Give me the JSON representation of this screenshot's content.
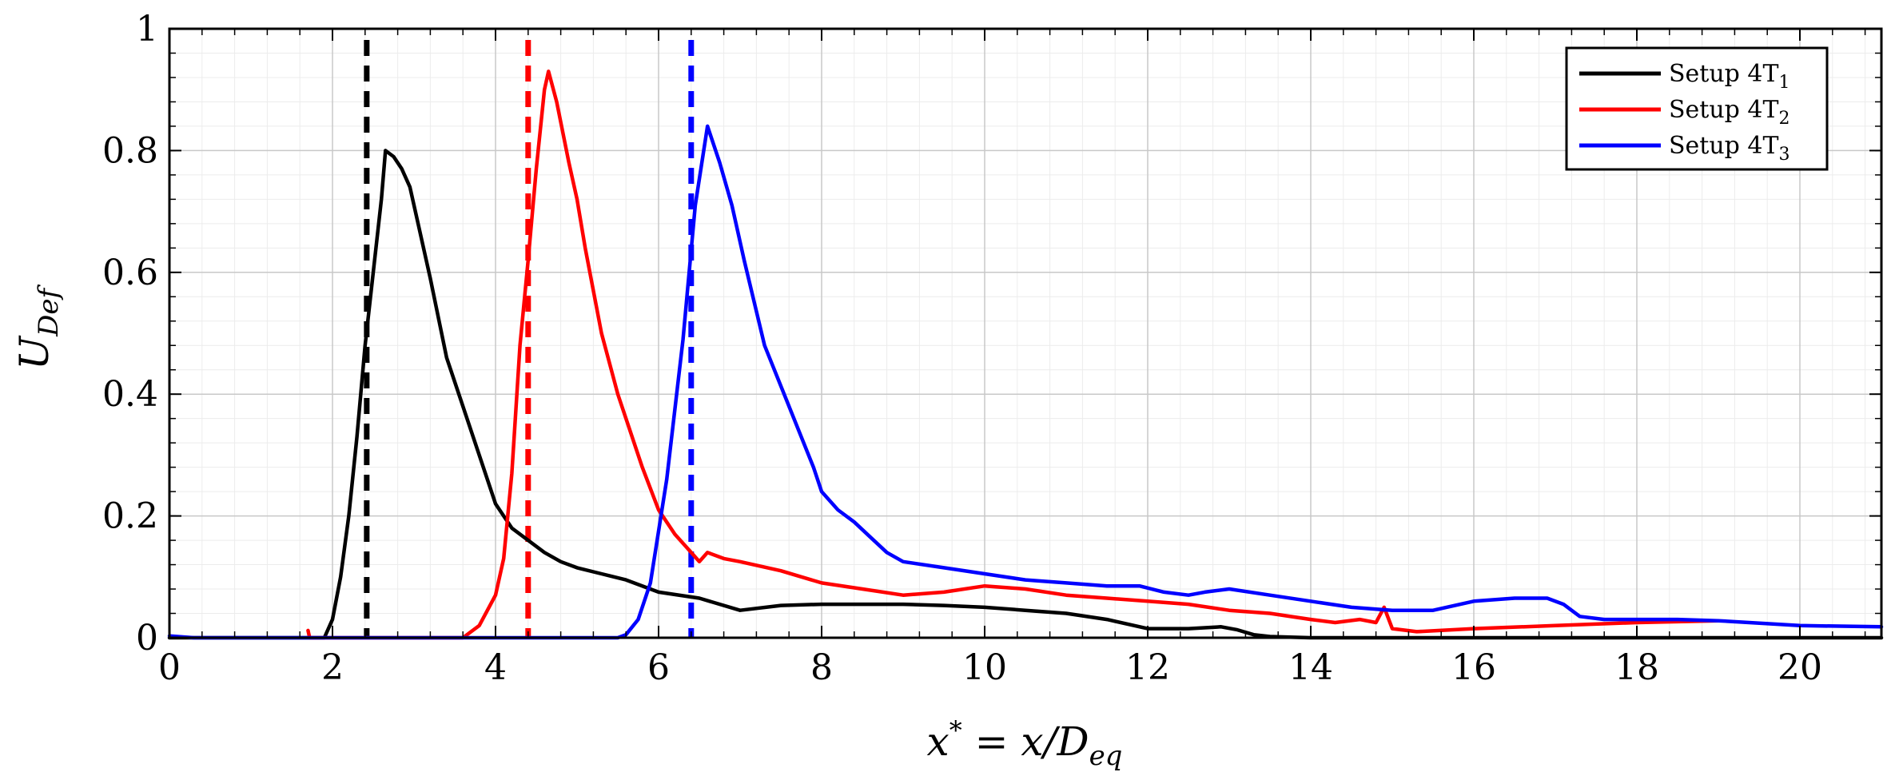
{
  "chart_data": {
    "type": "line",
    "xlabel_main": "x",
    "xlabel_sup": "*",
    "xlabel_rest": " = x/D",
    "xlabel_sub": "eq",
    "ylabel_main": "U",
    "ylabel_sub": "Def",
    "xlim": [
      0,
      21
    ],
    "ylim": [
      0,
      1
    ],
    "xticks": [
      "0",
      "2",
      "4",
      "6",
      "8",
      "10",
      "12",
      "14",
      "16",
      "18",
      "20"
    ],
    "yticks": [
      "0",
      "0.2",
      "0.4",
      "0.6",
      "0.8",
      "1"
    ],
    "grid": true,
    "legend_position": "top-right",
    "series": [
      {
        "name": "Setup 4T",
        "name_sub": "1",
        "color": "#000000",
        "peak_marker_x": 2.42,
        "x": [
          0,
          1.9,
          2.0,
          2.1,
          2.2,
          2.3,
          2.4,
          2.5,
          2.6,
          2.65,
          2.75,
          2.85,
          2.95,
          3.05,
          3.2,
          3.4,
          3.6,
          3.8,
          4.0,
          4.1,
          4.2,
          4.4,
          4.6,
          4.8,
          5.0,
          5.3,
          5.6,
          6.0,
          6.5,
          7.0,
          7.5,
          8.0,
          8.5,
          9.0,
          9.5,
          10.0,
          10.5,
          11.0,
          11.5,
          12.0,
          12.5,
          12.9,
          13.1,
          13.3,
          13.5,
          14.0,
          21
        ],
        "y": [
          0,
          0,
          0.03,
          0.1,
          0.2,
          0.33,
          0.48,
          0.6,
          0.72,
          0.8,
          0.79,
          0.77,
          0.74,
          0.68,
          0.59,
          0.46,
          0.38,
          0.3,
          0.22,
          0.2,
          0.18,
          0.16,
          0.14,
          0.125,
          0.115,
          0.105,
          0.095,
          0.075,
          0.065,
          0.045,
          0.053,
          0.055,
          0.055,
          0.055,
          0.053,
          0.05,
          0.045,
          0.04,
          0.03,
          0.015,
          0.015,
          0.018,
          0.013,
          0.005,
          0.002,
          0,
          0
        ]
      },
      {
        "name": "Setup 4T",
        "name_sub": "2",
        "color": "#ff0000",
        "peak_marker_x": 4.4,
        "x": [
          1.7,
          1.72,
          1.75,
          3.6,
          3.8,
          4.0,
          4.1,
          4.2,
          4.3,
          4.4,
          4.5,
          4.6,
          4.65,
          4.75,
          4.9,
          5.0,
          5.1,
          5.3,
          5.5,
          5.8,
          6.0,
          6.2,
          6.4,
          6.5,
          6.6,
          6.8,
          7.0,
          7.5,
          8.0,
          8.5,
          9.0,
          9.5,
          10.0,
          10.5,
          11.0,
          11.5,
          12.0,
          12.5,
          13.0,
          13.5,
          14.0,
          14.3,
          14.6,
          14.8,
          14.9,
          15.0,
          15.3,
          16.0,
          17.0,
          18.0,
          19.0
        ],
        "y": [
          0.012,
          0.0,
          0.0,
          0.0,
          0.02,
          0.07,
          0.13,
          0.27,
          0.48,
          0.62,
          0.77,
          0.9,
          0.93,
          0.88,
          0.78,
          0.72,
          0.64,
          0.5,
          0.4,
          0.28,
          0.21,
          0.17,
          0.14,
          0.125,
          0.14,
          0.13,
          0.125,
          0.11,
          0.09,
          0.08,
          0.07,
          0.075,
          0.085,
          0.08,
          0.07,
          0.065,
          0.06,
          0.055,
          0.045,
          0.04,
          0.03,
          0.025,
          0.03,
          0.025,
          0.05,
          0.015,
          0.01,
          0.015,
          0.02,
          0.025,
          0.028
        ]
      },
      {
        "name": "Setup 4T",
        "name_sub": "3",
        "color": "#0000ff",
        "peak_marker_x": 6.4,
        "x": [
          0,
          0.3,
          5.5,
          5.6,
          5.75,
          5.9,
          6.1,
          6.3,
          6.45,
          6.6,
          6.75,
          6.9,
          7.05,
          7.3,
          7.6,
          7.9,
          8.0,
          8.2,
          8.4,
          8.6,
          8.8,
          9.0,
          9.5,
          10.0,
          10.5,
          11.0,
          11.5,
          11.9,
          12.2,
          12.5,
          12.7,
          13.0,
          13.5,
          14.0,
          14.5,
          15.0,
          15.5,
          16.0,
          16.5,
          16.9,
          17.1,
          17.3,
          17.6,
          18.0,
          18.5,
          19.0,
          20.0,
          21.0
        ],
        "y": [
          0.003,
          0,
          0,
          0.005,
          0.03,
          0.09,
          0.26,
          0.49,
          0.71,
          0.84,
          0.78,
          0.71,
          0.62,
          0.48,
          0.38,
          0.28,
          0.24,
          0.21,
          0.19,
          0.165,
          0.14,
          0.125,
          0.115,
          0.105,
          0.095,
          0.09,
          0.085,
          0.085,
          0.075,
          0.07,
          0.075,
          0.08,
          0.07,
          0.06,
          0.05,
          0.045,
          0.045,
          0.06,
          0.065,
          0.065,
          0.055,
          0.035,
          0.03,
          0.03,
          0.03,
          0.028,
          0.02,
          0.018
        ]
      }
    ]
  }
}
